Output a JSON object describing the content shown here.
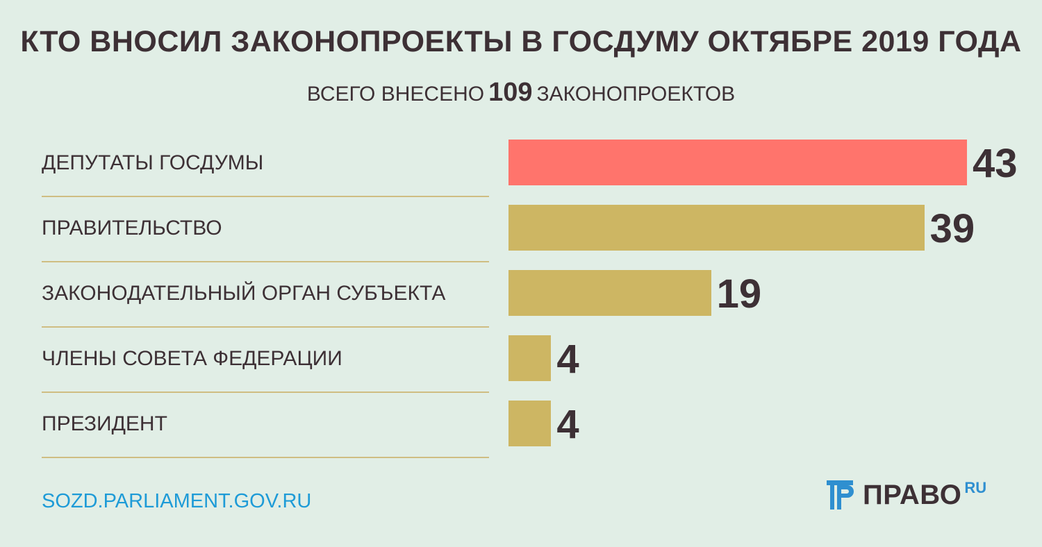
{
  "header": {
    "title": "КТО ВНОСИЛ ЗАКОНОПРОЕКТЫ В ГОСДУМУ ОКТЯБРЕ 2019 ГОДА",
    "subtitle_prefix": "ВСЕГО ВНЕСЕНО",
    "subtitle_number": "109",
    "subtitle_suffix": "ЗАКОНОПРОЕКТОВ"
  },
  "chart_data": {
    "type": "bar",
    "orientation": "horizontal",
    "title": "КТО ВНОСИЛ ЗАКОНОПРОЕКТЫ В ГОСДУМУ ОКТЯБРЕ 2019 ГОДА",
    "subtitle": "ВСЕГО ВНЕСЕНО 109 ЗАКОНОПРОЕКТОВ",
    "categories": [
      "ДЕПУТАТЫ ГОСДУМЫ",
      "ПРАВИТЕЛЬСТВО",
      "ЗАКОНОДАТЕЛЬНЫЙ ОРГАН СУБЪЕКТА",
      "ЧЛЕНЫ СОВЕТА ФЕДЕРАЦИИ",
      "ПРЕЗИДЕНТ"
    ],
    "values": [
      43,
      39,
      19,
      4,
      4
    ],
    "colors": [
      "#ff746c",
      "#cdb663",
      "#cdb663",
      "#cdb663",
      "#cdb663"
    ],
    "data_labels": [
      "43",
      "39",
      "19",
      "4",
      "4"
    ],
    "xlim": [
      0,
      43
    ],
    "grid": false,
    "legend": "none"
  },
  "footer": {
    "source": "SOZD.PARLIAMENT.GOV.RU",
    "logo_text": "ПРАВО",
    "logo_suffix": "RU",
    "logo_icon": "pravo-logo-icon",
    "logo_color": "#2f8fd0"
  }
}
